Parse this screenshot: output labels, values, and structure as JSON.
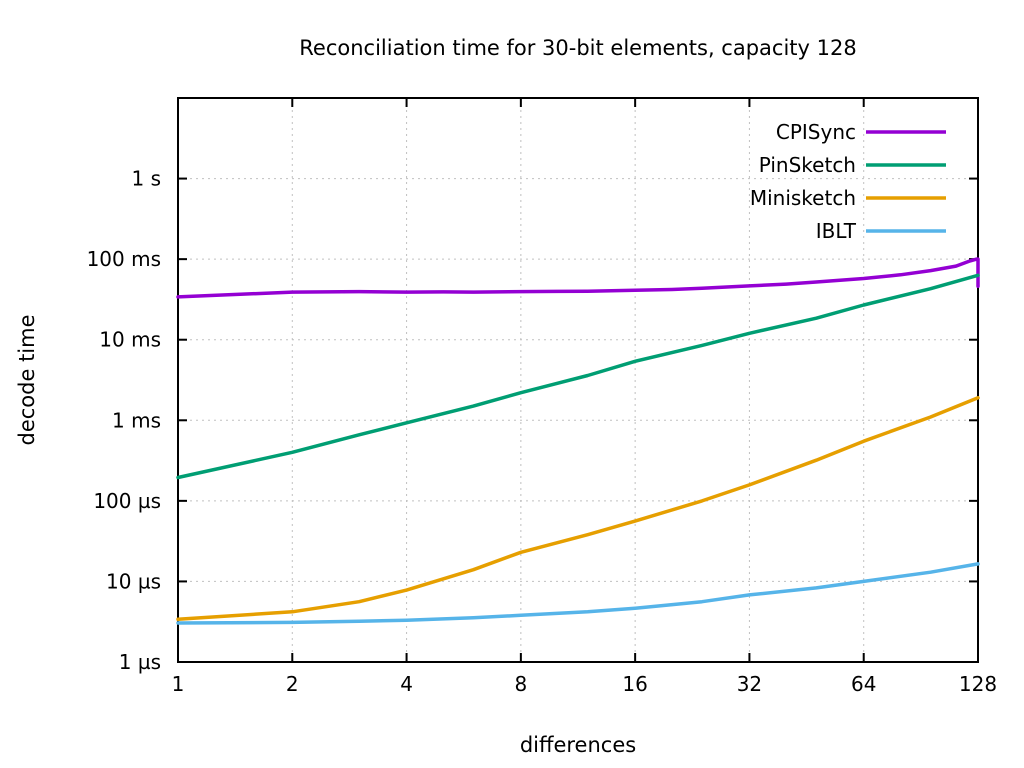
{
  "chart_data": {
    "type": "line",
    "title": "Reconciliation time for 30-bit elements, capacity 128",
    "xlabel": "differences",
    "ylabel": "decode time",
    "x_scale": "log2",
    "y_scale": "log10",
    "x_range": [
      1,
      128
    ],
    "y_range_microseconds": [
      1,
      10000000
    ],
    "grid": true,
    "legend_position": "top-right",
    "x_ticks": [
      1,
      2,
      4,
      8,
      16,
      32,
      64,
      128
    ],
    "y_ticks": [
      {
        "value_us": 1,
        "label": "1 µs"
      },
      {
        "value_us": 10,
        "label": "10 µs"
      },
      {
        "value_us": 100,
        "label": "100 µs"
      },
      {
        "value_us": 1000,
        "label": "1 ms"
      },
      {
        "value_us": 10000,
        "label": "10 ms"
      },
      {
        "value_us": 100000,
        "label": "100 ms"
      },
      {
        "value_us": 1000000,
        "label": "1 s"
      }
    ],
    "series": [
      {
        "name": "CPISync",
        "color": "#9400d3",
        "points_x_us": [
          [
            1,
            34000
          ],
          [
            2,
            39000
          ],
          [
            3,
            39500
          ],
          [
            4,
            39000
          ],
          [
            5,
            39200
          ],
          [
            6,
            39000
          ],
          [
            8,
            39500
          ],
          [
            10,
            39800
          ],
          [
            12,
            40000
          ],
          [
            16,
            41000
          ],
          [
            20,
            42000
          ],
          [
            24,
            43500
          ],
          [
            32,
            46500
          ],
          [
            40,
            49000
          ],
          [
            48,
            52000
          ],
          [
            64,
            57500
          ],
          [
            80,
            64000
          ],
          [
            96,
            72000
          ],
          [
            112,
            82000
          ],
          [
            122,
            95000
          ],
          [
            127,
            100000
          ],
          [
            128,
            100000
          ],
          [
            128,
            46000
          ]
        ]
      },
      {
        "name": "PinSketch",
        "color": "#009e73",
        "points_x_us": [
          [
            1,
            195
          ],
          [
            2,
            400
          ],
          [
            3,
            660
          ],
          [
            4,
            930
          ],
          [
            6,
            1500
          ],
          [
            8,
            2200
          ],
          [
            12,
            3600
          ],
          [
            16,
            5400
          ],
          [
            24,
            8500
          ],
          [
            32,
            12000
          ],
          [
            48,
            18500
          ],
          [
            64,
            27000
          ],
          [
            96,
            43000
          ],
          [
            128,
            63000
          ]
        ]
      },
      {
        "name": "Minisketch",
        "color": "#e69f00",
        "points_x_us": [
          [
            1,
            3.4
          ],
          [
            2,
            4.2
          ],
          [
            3,
            5.6
          ],
          [
            4,
            7.8
          ],
          [
            6,
            14
          ],
          [
            8,
            23
          ],
          [
            12,
            38
          ],
          [
            16,
            56
          ],
          [
            24,
            100
          ],
          [
            32,
            158
          ],
          [
            48,
            320
          ],
          [
            64,
            550
          ],
          [
            96,
            1100
          ],
          [
            128,
            1900
          ]
        ]
      },
      {
        "name": "IBLT",
        "color": "#56b4e9",
        "points_x_us": [
          [
            1,
            3.05
          ],
          [
            2,
            3.1
          ],
          [
            3,
            3.2
          ],
          [
            4,
            3.3
          ],
          [
            6,
            3.55
          ],
          [
            8,
            3.8
          ],
          [
            12,
            4.2
          ],
          [
            16,
            4.65
          ],
          [
            24,
            5.6
          ],
          [
            32,
            6.8
          ],
          [
            48,
            8.3
          ],
          [
            64,
            10
          ],
          [
            96,
            13
          ],
          [
            128,
            16.5
          ]
        ]
      }
    ],
    "style": {
      "grid_color": "#c0c0c0",
      "frame_color": "#000000",
      "text_color": "#000000",
      "line_width": 3.5
    }
  }
}
